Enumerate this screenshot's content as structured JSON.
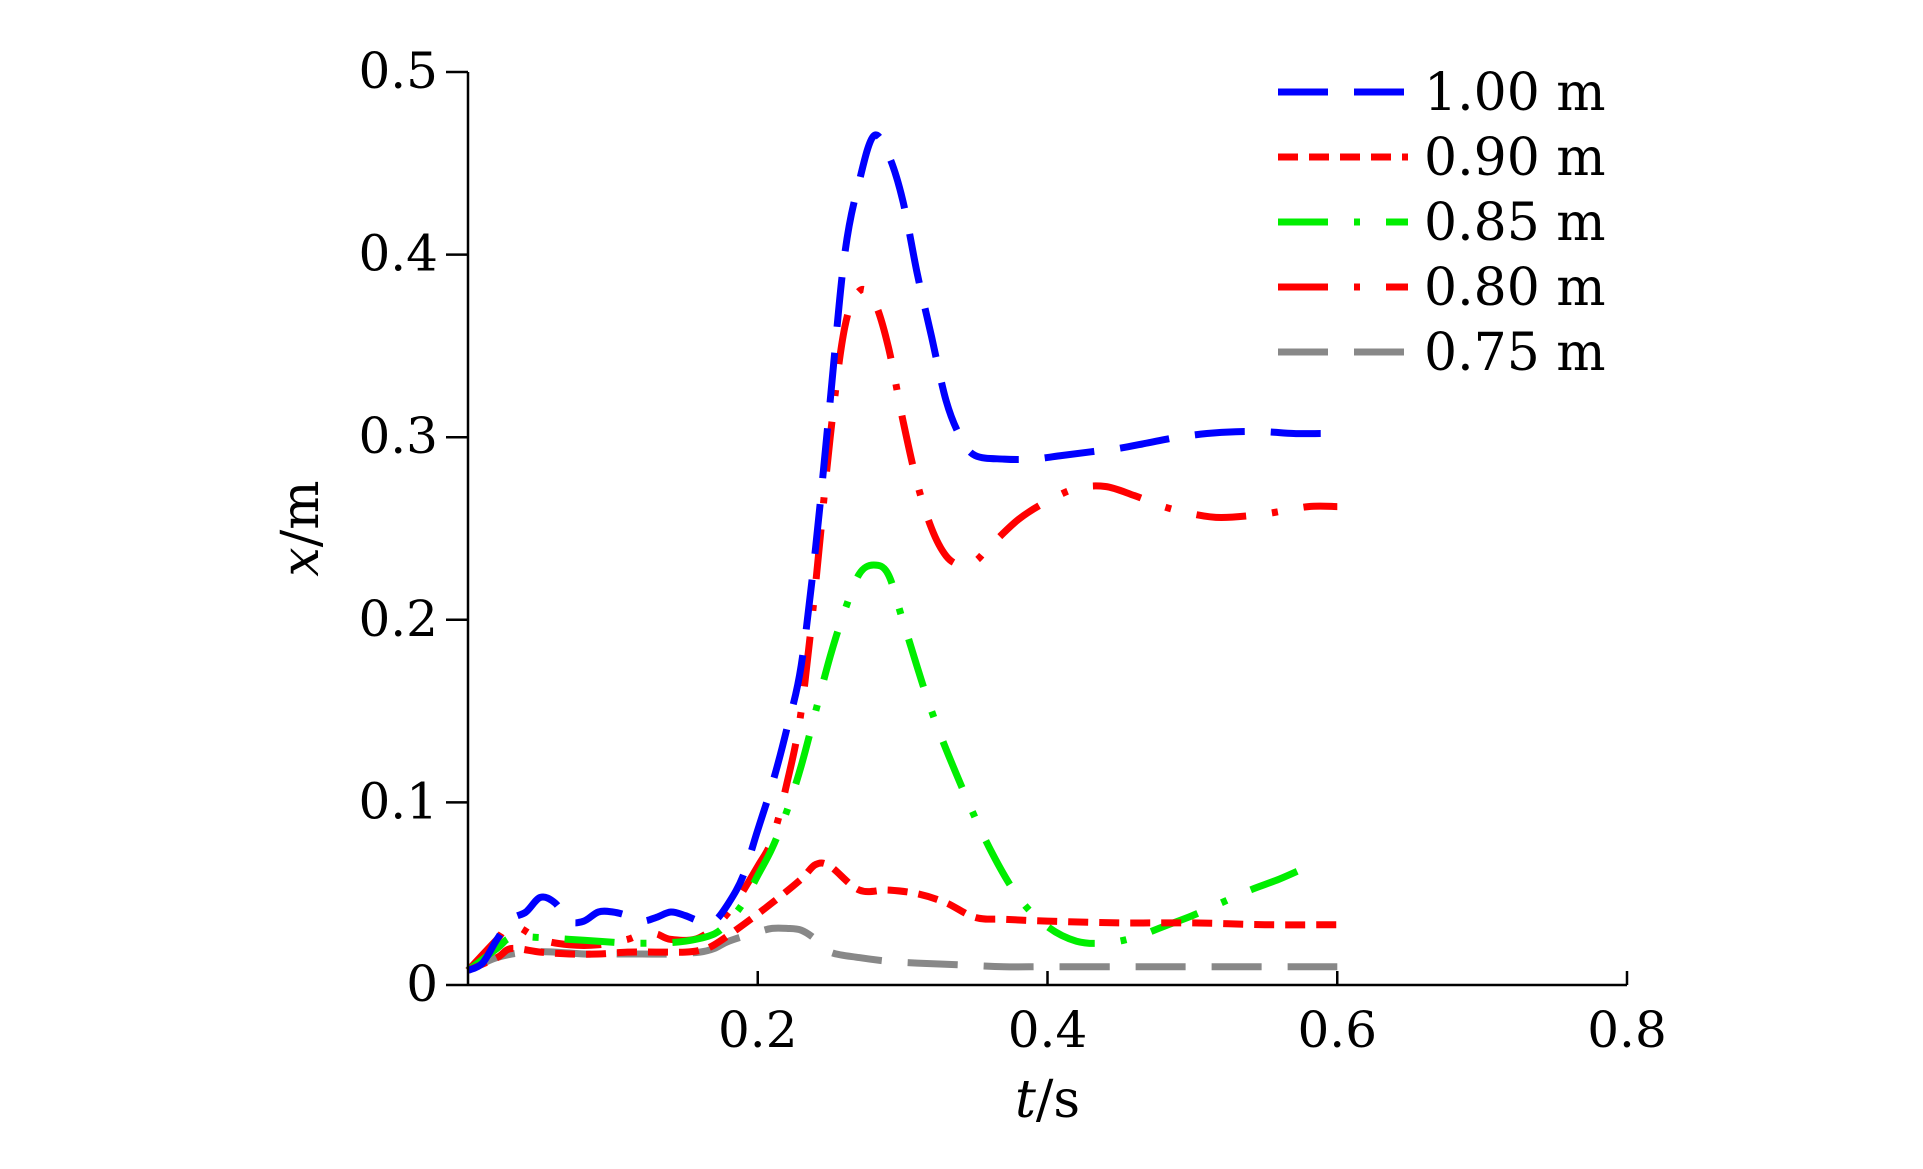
{
  "chart_data": {
    "type": "line",
    "title": "",
    "xlabel": "t/s",
    "ylabel": "x/m",
    "xlim": [
      0,
      0.8
    ],
    "ylim": [
      0,
      0.5
    ],
    "xticks": [
      0.2,
      0.4,
      0.6,
      0.8
    ],
    "xtick_labels": [
      "0.2",
      "0.4",
      "0.6",
      "0.8"
    ],
    "yticks": [
      0,
      0.1,
      0.2,
      0.3,
      0.4,
      0.5
    ],
    "ytick_labels": [
      "0",
      "0.1",
      "0.2",
      "0.3",
      "0.4",
      "0.5"
    ],
    "grid": false,
    "legend_position": "top-right",
    "series": [
      {
        "name": "1.00 m",
        "color": "#0000ff",
        "style": "long-dash",
        "x": [
          0,
          0.01,
          0.02,
          0.03,
          0.04,
          0.05,
          0.06,
          0.07,
          0.08,
          0.09,
          0.1,
          0.11,
          0.12,
          0.13,
          0.14,
          0.15,
          0.16,
          0.17,
          0.18,
          0.19,
          0.2,
          0.21,
          0.22,
          0.23,
          0.24,
          0.25,
          0.26,
          0.27,
          0.28,
          0.29,
          0.3,
          0.31,
          0.32,
          0.33,
          0.34,
          0.35,
          0.37,
          0.39,
          0.41,
          0.43,
          0.45,
          0.47,
          0.49,
          0.51,
          0.53,
          0.55,
          0.57,
          0.59,
          0.6
        ],
        "y": [
          0.008,
          0.012,
          0.025,
          0.036,
          0.04,
          0.048,
          0.045,
          0.035,
          0.035,
          0.04,
          0.04,
          0.038,
          0.035,
          0.037,
          0.04,
          0.038,
          0.035,
          0.035,
          0.045,
          0.06,
          0.085,
          0.11,
          0.14,
          0.175,
          0.24,
          0.32,
          0.4,
          0.44,
          0.465,
          0.455,
          0.43,
          0.39,
          0.355,
          0.32,
          0.3,
          0.29,
          0.288,
          0.288,
          0.29,
          0.292,
          0.294,
          0.297,
          0.3,
          0.302,
          0.303,
          0.303,
          0.302,
          0.302,
          0.302
        ]
      },
      {
        "name": "0.90 m",
        "color": "#ff0000",
        "style": "short-dash",
        "x": [
          0,
          0.02,
          0.03,
          0.05,
          0.07,
          0.09,
          0.11,
          0.13,
          0.15,
          0.16,
          0.17,
          0.19,
          0.21,
          0.23,
          0.24,
          0.25,
          0.27,
          0.29,
          0.31,
          0.33,
          0.35,
          0.37,
          0.4,
          0.45,
          0.5,
          0.55,
          0.6
        ],
        "y": [
          0.008,
          0.015,
          0.02,
          0.018,
          0.017,
          0.017,
          0.018,
          0.018,
          0.018,
          0.019,
          0.022,
          0.033,
          0.045,
          0.058,
          0.066,
          0.065,
          0.052,
          0.052,
          0.05,
          0.045,
          0.037,
          0.036,
          0.035,
          0.034,
          0.034,
          0.033,
          0.033
        ]
      },
      {
        "name": "0.85 m",
        "color": "#00ee00",
        "style": "dash-dot",
        "x": [
          0,
          0.02,
          0.03,
          0.05,
          0.07,
          0.09,
          0.11,
          0.13,
          0.15,
          0.17,
          0.18,
          0.19,
          0.2,
          0.21,
          0.22,
          0.23,
          0.24,
          0.25,
          0.26,
          0.27,
          0.28,
          0.29,
          0.3,
          0.32,
          0.34,
          0.36,
          0.38,
          0.4,
          0.42,
          0.44,
          0.46,
          0.48,
          0.5,
          0.52,
          0.54,
          0.56,
          0.58
        ],
        "y": [
          0.008,
          0.02,
          0.026,
          0.026,
          0.025,
          0.024,
          0.023,
          0.023,
          0.024,
          0.028,
          0.035,
          0.045,
          0.06,
          0.075,
          0.095,
          0.12,
          0.15,
          0.18,
          0.205,
          0.225,
          0.23,
          0.225,
          0.2,
          0.15,
          0.11,
          0.075,
          0.048,
          0.032,
          0.024,
          0.023,
          0.026,
          0.032,
          0.038,
          0.045,
          0.052,
          0.058,
          0.065
        ]
      },
      {
        "name": "0.80 m",
        "color": "#ff0000",
        "style": "long-dash-dot",
        "x": [
          0,
          0.02,
          0.03,
          0.05,
          0.07,
          0.09,
          0.11,
          0.12,
          0.13,
          0.14,
          0.16,
          0.18,
          0.2,
          0.21,
          0.22,
          0.23,
          0.24,
          0.25,
          0.26,
          0.27,
          0.28,
          0.29,
          0.3,
          0.31,
          0.32,
          0.33,
          0.34,
          0.35,
          0.36,
          0.38,
          0.4,
          0.42,
          0.44,
          0.46,
          0.48,
          0.5,
          0.52,
          0.55,
          0.58,
          0.6
        ],
        "y": [
          0.008,
          0.025,
          0.033,
          0.025,
          0.022,
          0.022,
          0.025,
          0.028,
          0.028,
          0.025,
          0.026,
          0.04,
          0.065,
          0.08,
          0.11,
          0.15,
          0.22,
          0.3,
          0.36,
          0.38,
          0.375,
          0.35,
          0.31,
          0.275,
          0.25,
          0.235,
          0.23,
          0.232,
          0.24,
          0.255,
          0.265,
          0.272,
          0.273,
          0.268,
          0.262,
          0.258,
          0.256,
          0.258,
          0.262,
          0.262
        ]
      },
      {
        "name": "0.75 m",
        "color": "#888888",
        "style": "long-dash",
        "x": [
          0,
          0.02,
          0.04,
          0.06,
          0.08,
          0.1,
          0.12,
          0.14,
          0.16,
          0.17,
          0.18,
          0.2,
          0.21,
          0.22,
          0.23,
          0.24,
          0.25,
          0.27,
          0.29,
          0.31,
          0.34,
          0.37,
          0.4,
          0.45,
          0.5,
          0.55,
          0.6
        ],
        "y": [
          0.008,
          0.015,
          0.018,
          0.018,
          0.017,
          0.017,
          0.017,
          0.017,
          0.018,
          0.02,
          0.024,
          0.029,
          0.031,
          0.031,
          0.03,
          0.025,
          0.018,
          0.015,
          0.013,
          0.012,
          0.011,
          0.01,
          0.01,
          0.01,
          0.01,
          0.01,
          0.01
        ]
      }
    ]
  }
}
